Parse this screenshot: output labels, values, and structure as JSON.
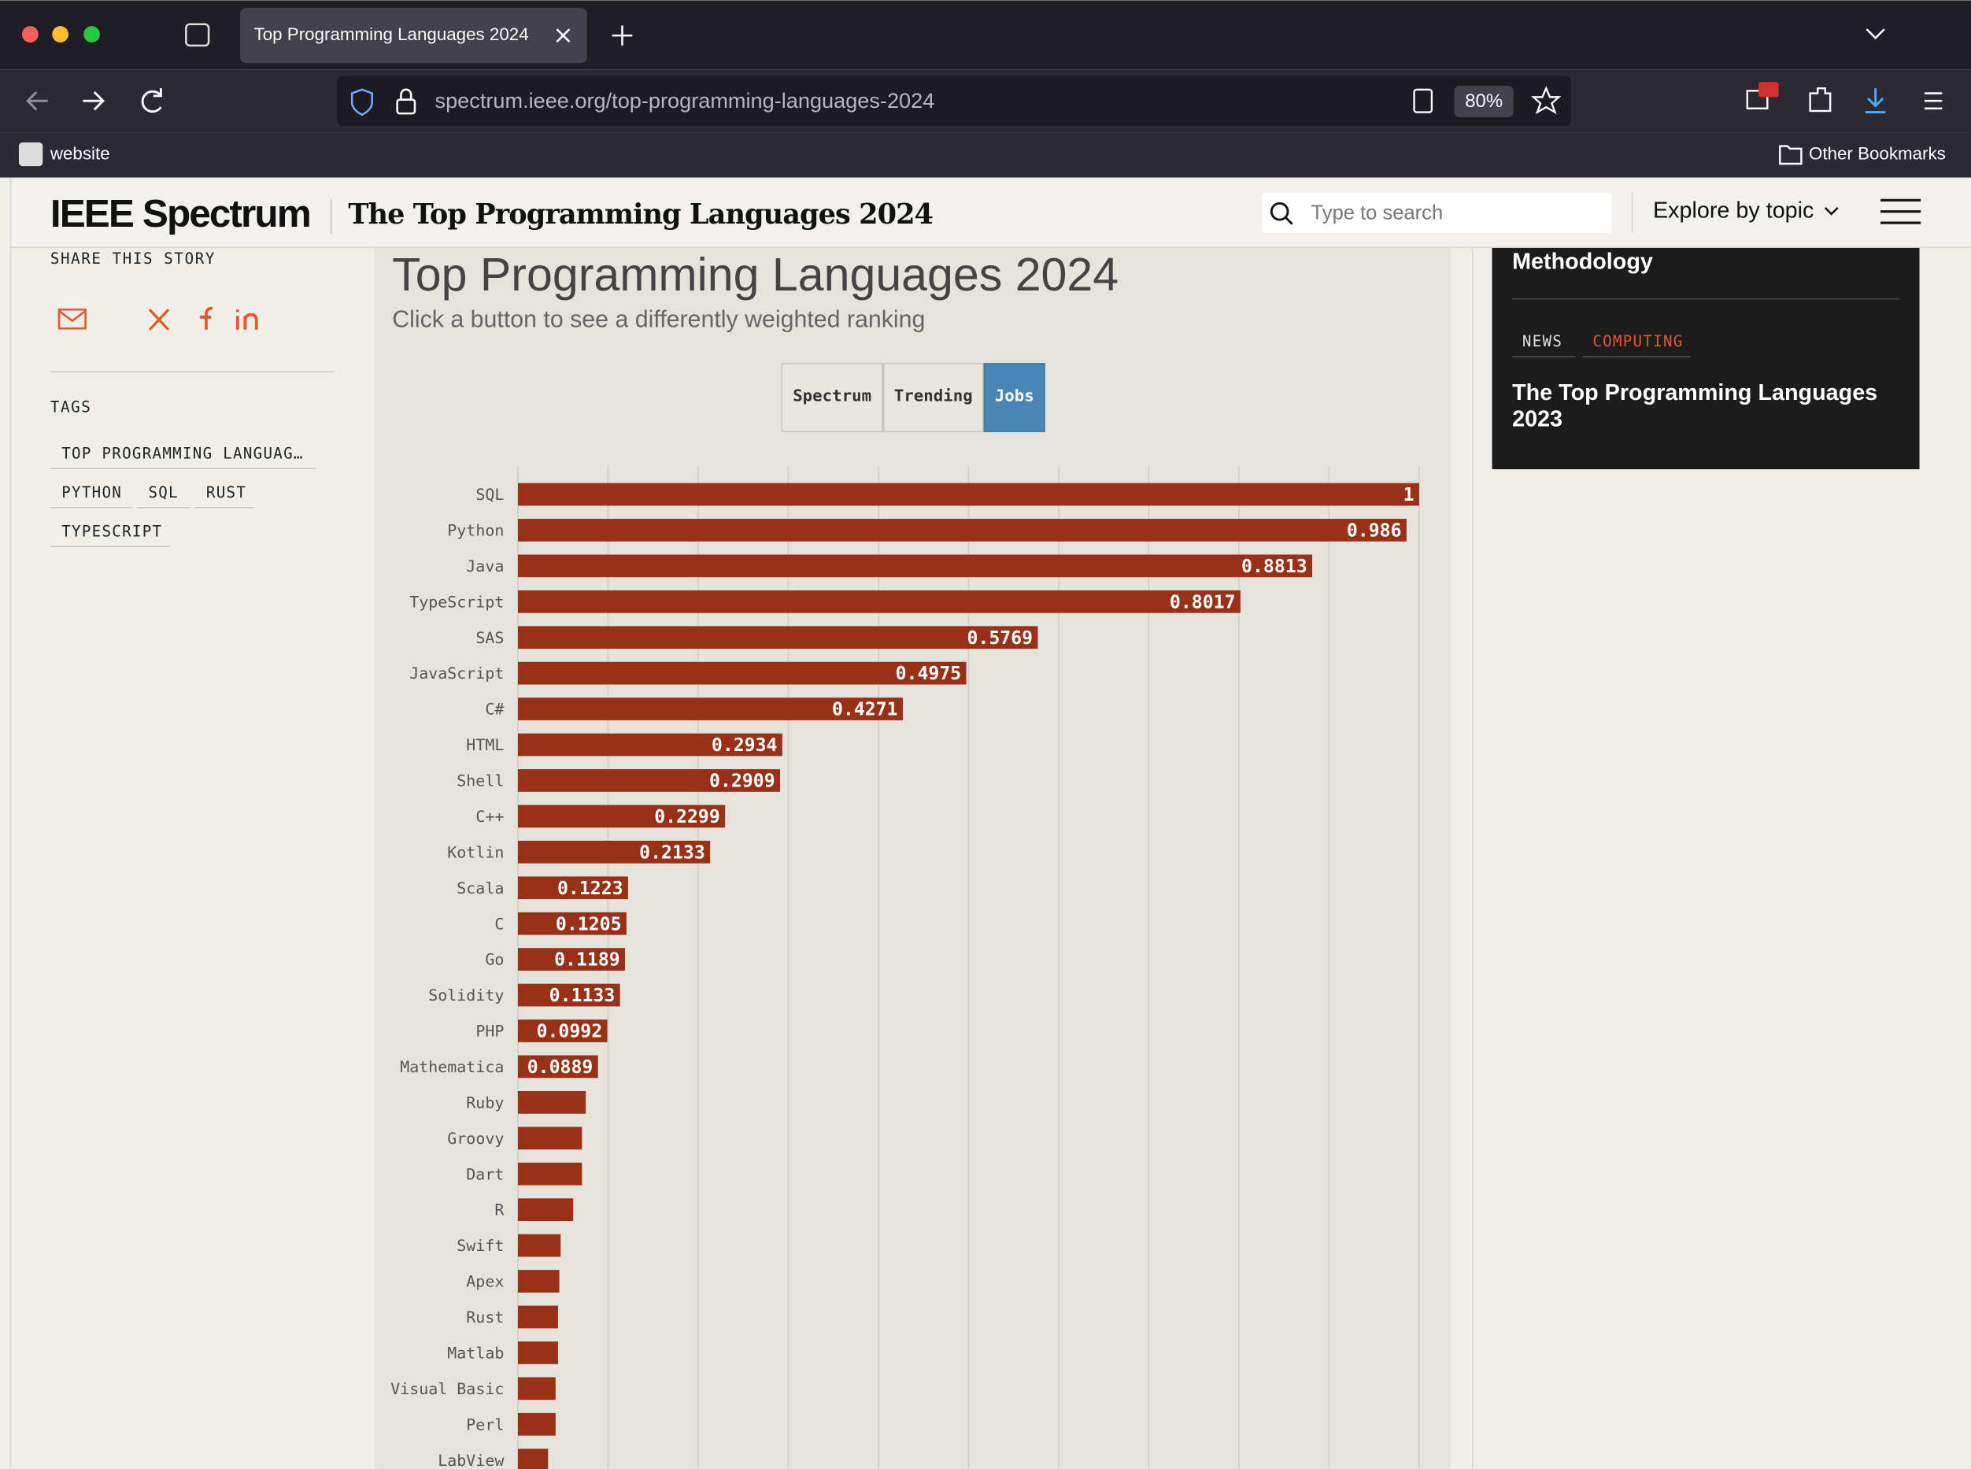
{
  "browser": {
    "tab_title": "Top Programming Languages 2024",
    "url": "spectrum.ieee.org/top-programming-languages-2024",
    "zoom": "80%",
    "bookmark": "website",
    "other_bookmarks": "Other Bookmarks"
  },
  "header": {
    "logo": "IEEE Spectrum",
    "title": "The Top Programming Languages 2024",
    "search_placeholder": "Type to search",
    "explore": "Explore by topic"
  },
  "sidebar": {
    "share": "SHARE THIS STORY",
    "tags_heading": "TAGS",
    "tags": [
      "TOP PROGRAMMING LANGUAG…",
      "PYTHON",
      "SQL",
      "RUST",
      "TYPESCRIPT"
    ]
  },
  "buttons": [
    "Spectrum",
    "Trending",
    "Jobs"
  ],
  "related": {
    "heading": "Methodology",
    "labels": [
      "NEWS",
      "COMPUTING"
    ],
    "title_lines": [
      "The Top Programming Languages",
      "2023"
    ]
  },
  "chart_data": {
    "type": "bar",
    "orientation": "horizontal",
    "title": "Top Programming Languages 2024",
    "subtitle": "Click a button to see a differently weighted ranking",
    "categories": [
      "SQL",
      "Python",
      "Java",
      "TypeScript",
      "SAS",
      "JavaScript",
      "C#",
      "HTML",
      "Shell",
      "C++",
      "Kotlin",
      "Scala",
      "C",
      "Go",
      "Solidity",
      "PHP",
      "Mathematica",
      "Ruby",
      "Groovy",
      "Dart",
      "R",
      "Swift",
      "Apex",
      "Rust",
      "Matlab",
      "Visual Basic",
      "Perl",
      "LabView"
    ],
    "values": [
      1,
      0.986,
      0.8813,
      0.8017,
      0.5769,
      0.4975,
      0.4271,
      0.2934,
      0.2909,
      0.2299,
      0.2133,
      0.1223,
      0.1205,
      0.1189,
      0.1133,
      0.0992,
      0.0889,
      0.0753,
      0.0711,
      0.0711,
      0.0614,
      0.0474,
      0.046,
      0.0446,
      0.0446,
      0.0418,
      0.0418,
      0.0335
    ],
    "color": "#983117",
    "xlim": [
      0,
      1
    ],
    "xticks": [
      0,
      0.1,
      0.2,
      0.3,
      0.4,
      0.5,
      0.6,
      0.7,
      0.8,
      0.9,
      1
    ],
    "grid": true
  }
}
